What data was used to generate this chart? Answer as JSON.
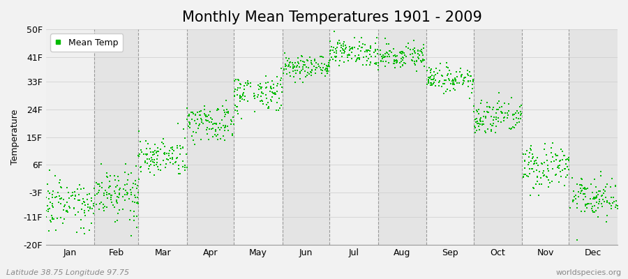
{
  "title": "Monthly Mean Temperatures 1901 - 2009",
  "ylabel": "Temperature",
  "xlabel_months": [
    "Jan",
    "Feb",
    "Mar",
    "Apr",
    "May",
    "Jun",
    "Jul",
    "Aug",
    "Sep",
    "Oct",
    "Nov",
    "Dec"
  ],
  "month_days": [
    31,
    28,
    31,
    30,
    31,
    30,
    31,
    31,
    30,
    31,
    30,
    31
  ],
  "yticks": [
    -20,
    -11,
    -3,
    6,
    15,
    24,
    33,
    41,
    50
  ],
  "ytick_labels": [
    "-20F",
    "-11F",
    "-3F",
    "6F",
    "15F",
    "24F",
    "33F",
    "41F",
    "50F"
  ],
  "ylim": [
    -20,
    50
  ],
  "dot_color": "#00BB00",
  "bg_color": "#f2f2f2",
  "plot_bg_color_light": "#f0f0f0",
  "plot_bg_color_dark": "#e4e4e4",
  "legend_label": "Mean Temp",
  "footer_left": "Latitude 38.75 Longitude 97.75",
  "footer_right": "worldspecies.org",
  "monthly_means_f": [
    -7.0,
    -3.0,
    9.0,
    20.0,
    29.5,
    37.5,
    42.5,
    41.5,
    34.0,
    21.5,
    5.0,
    -5.0
  ],
  "monthly_stds_f": [
    3.5,
    4.0,
    3.5,
    3.0,
    3.0,
    2.0,
    2.0,
    2.0,
    2.0,
    3.0,
    3.5,
    3.5
  ],
  "n_years": 109,
  "title_fontsize": 15,
  "axis_fontsize": 9,
  "tick_fontsize": 9,
  "footer_fontsize": 8,
  "dashed_line_color": "#999999"
}
